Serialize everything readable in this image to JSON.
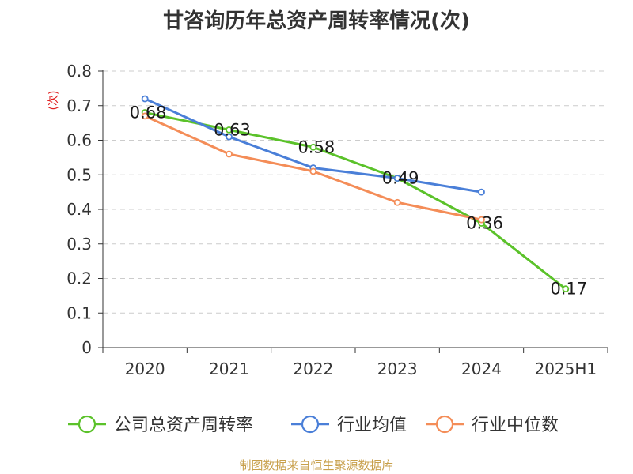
{
  "chart_data": {
    "type": "line",
    "title": "甘咨询历年总资产周转率情况(次)",
    "ylabel": "(次)",
    "xlabel": "",
    "categories": [
      "2020",
      "2021",
      "2022",
      "2023",
      "2024",
      "2025H1"
    ],
    "ylim": [
      0,
      0.8
    ],
    "yticks": [
      "0",
      "0.1",
      "0.2",
      "0.3",
      "0.4",
      "0.5",
      "0.6",
      "0.7",
      "0.8"
    ],
    "grid": true,
    "legend_position": "bottom",
    "series": [
      {
        "name": "公司总资产周转率",
        "color": "#5bc22a",
        "values": [
          0.68,
          0.63,
          0.58,
          0.49,
          0.36,
          0.17
        ],
        "labels": [
          "0.68",
          "0.63",
          "0.58",
          "0.49",
          "0.36",
          "0.17"
        ]
      },
      {
        "name": "行业均值",
        "color": "#4a7fd8",
        "values": [
          0.72,
          0.61,
          0.52,
          0.49,
          0.45,
          null
        ]
      },
      {
        "name": "行业中位数",
        "color": "#f48d58",
        "values": [
          0.67,
          0.56,
          0.51,
          0.42,
          0.37,
          null
        ]
      }
    ]
  },
  "footer": {
    "source": "制图数据来自恒生聚源数据库"
  }
}
